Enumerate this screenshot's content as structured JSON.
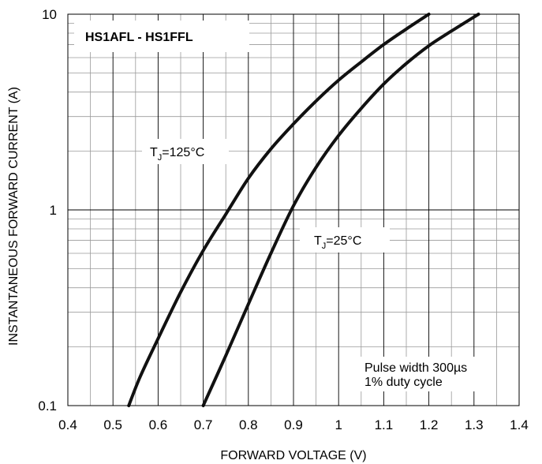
{
  "chart_data": {
    "type": "line",
    "title": "HS1AFL - HS1FFL",
    "xlabel": "FORWARD VOLTAGE (V)",
    "ylabel": "INSTANTANEOUS FORWARD CURRENT (A)",
    "xlim": [
      0.4,
      1.4
    ],
    "ylim": [
      0.1,
      10
    ],
    "y_scale": "log",
    "grid": true,
    "x_ticks": [
      "0.4",
      "0.5",
      "0.6",
      "0.7",
      "0.8",
      "0.9",
      "1",
      "1.1",
      "1.2",
      "1.3",
      "1.4"
    ],
    "y_ticks": [
      "0.1",
      "1",
      "10"
    ],
    "series": [
      {
        "label_prefix": "T",
        "label_sub": "J",
        "label_suffix": "=125°C",
        "x": [
          0.535,
          0.56,
          0.6,
          0.65,
          0.7,
          0.75,
          0.8,
          0.85,
          0.9,
          0.95,
          1.0,
          1.05,
          1.1,
          1.15,
          1.2
        ],
        "y": [
          0.1,
          0.14,
          0.22,
          0.38,
          0.62,
          0.95,
          1.45,
          2.05,
          2.75,
          3.6,
          4.6,
          5.7,
          7.0,
          8.4,
          10.0
        ]
      },
      {
        "label_prefix": "T",
        "label_sub": "J",
        "label_suffix": "=25°C",
        "x": [
          0.7,
          0.75,
          0.8,
          0.85,
          0.9,
          0.95,
          1.0,
          1.05,
          1.1,
          1.15,
          1.2,
          1.25,
          1.31
        ],
        "y": [
          0.1,
          0.18,
          0.33,
          0.6,
          1.05,
          1.65,
          2.4,
          3.3,
          4.4,
          5.6,
          6.9,
          8.2,
          10.0
        ]
      }
    ],
    "annotations": [
      "Pulse width 300µs",
      "1% duty cycle"
    ]
  }
}
